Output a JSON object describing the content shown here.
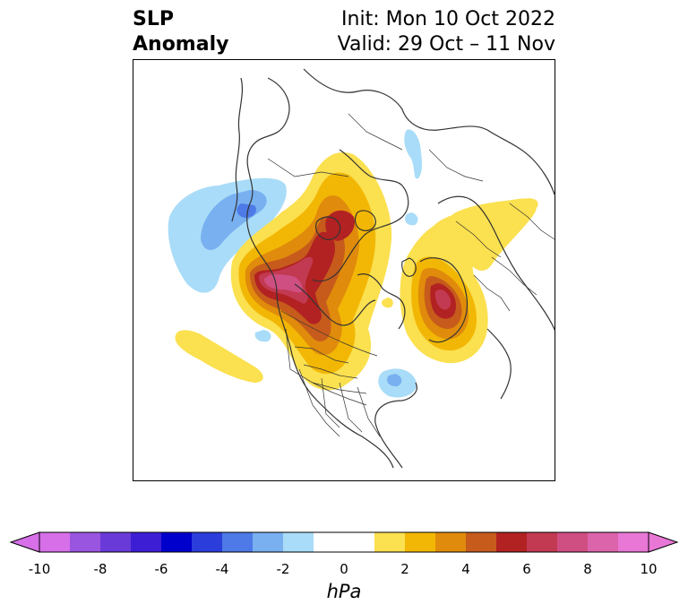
{
  "title": {
    "left_line1": "SLP",
    "left_line2": "Anomaly",
    "right_line1": "Init: Mon 10 Oct 2022",
    "right_line2": "Valid: 29 Oct – 11 Nov"
  },
  "colorbar": {
    "unit": "hPa",
    "tick_labels": [
      "-10",
      "-8",
      "-6",
      "-4",
      "-2",
      "0",
      "2",
      "4",
      "6",
      "8",
      "10"
    ],
    "tick_values": [
      -10,
      -8,
      -6,
      -4,
      -2,
      0,
      2,
      4,
      6,
      8,
      10
    ],
    "bins": [
      {
        "range": [
          -10,
          -9
        ],
        "color": "#d66fe8"
      },
      {
        "range": [
          -9,
          -8
        ],
        "color": "#9a55e0"
      },
      {
        "range": [
          -8,
          -7
        ],
        "color": "#6a3ad8"
      },
      {
        "range": [
          -7,
          -6
        ],
        "color": "#3d1ed4"
      },
      {
        "range": [
          -6,
          -5
        ],
        "color": "#0000cc"
      },
      {
        "range": [
          -5,
          -4
        ],
        "color": "#2b3ddb"
      },
      {
        "range": [
          -4,
          -3
        ],
        "color": "#4d7ae6"
      },
      {
        "range": [
          -3,
          -2
        ],
        "color": "#78b0f0"
      },
      {
        "range": [
          -2,
          -1
        ],
        "color": "#a9dcf8"
      },
      {
        "range": [
          -1,
          1
        ],
        "color": "#ffffff"
      },
      {
        "range": [
          1,
          2
        ],
        "color": "#fbe04f"
      },
      {
        "range": [
          2,
          3
        ],
        "color": "#f2b705"
      },
      {
        "range": [
          3,
          4
        ],
        "color": "#e08b0b"
      },
      {
        "range": [
          4,
          5
        ],
        "color": "#c65b1c"
      },
      {
        "range": [
          5,
          6
        ],
        "color": "#b22222"
      },
      {
        "range": [
          6,
          7
        ],
        "color": "#c23a52"
      },
      {
        "range": [
          7,
          8
        ],
        "color": "#cf4f82"
      },
      {
        "range": [
          8,
          9
        ],
        "color": "#db64ab"
      },
      {
        "range": [
          9,
          10
        ],
        "color": "#e877d6"
      }
    ],
    "extend_low_color": "#d66fe8",
    "extend_high_color": "#e877d6"
  },
  "map": {
    "projection": "north-polar-stereographic",
    "field": "SLP anomaly",
    "features": [
      "coastlines",
      "country-borders",
      "us-state-borders",
      "canada-province-borders"
    ]
  }
}
